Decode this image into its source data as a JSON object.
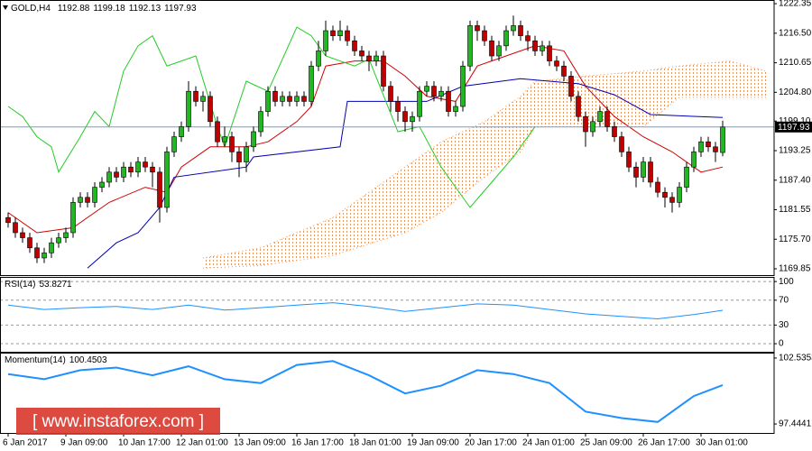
{
  "chart_data": [
    {
      "type": "candlestick",
      "title": "GOLD,H4",
      "xlim": [
        -1.125,
        106.125
      ],
      "xticks": [
        {
          "value": 0,
          "label": "6 Jan 2017"
        },
        {
          "value": 8,
          "label": "9 Jan 09:00"
        },
        {
          "value": 16,
          "label": "10 Jan 17:00"
        },
        {
          "value": 24,
          "label": "12 Jan 01:00"
        },
        {
          "value": 32,
          "label": "13 Jan 09:00"
        },
        {
          "value": 40,
          "label": "16 Jan 17:00"
        },
        {
          "value": 48,
          "label": "18 Jan 01:00"
        },
        {
          "value": 56,
          "label": "19 Jan 09:00"
        },
        {
          "value": 64,
          "label": "20 Jan 17:00"
        },
        {
          "value": 72,
          "label": "24 Jan 01:00"
        },
        {
          "value": 80,
          "label": "25 Jan 09:00"
        },
        {
          "value": 88,
          "label": "26 Jan 17:00"
        },
        {
          "value": 96,
          "label": "30 Jan 01:00"
        }
      ],
      "ylim": [
        1168.6,
        1222.9
      ],
      "yticks": [
        1222.35,
        {
          "value": 1216.5,
          "label": "1216.50"
        },
        1210.65,
        {
          "value": 1204.8,
          "label": "1204.80"
        },
        {
          "value": 1199.1,
          "label": "1199.10"
        },
        1193.25,
        {
          "value": 1187.4,
          "label": "1187.40"
        },
        1181.55,
        {
          "value": 1175.7,
          "label": "1175.70"
        },
        1169.85
      ],
      "grid": false,
      "up_color": "#22b722",
      "down_color": "#c00000",
      "wick_color": "#000000",
      "open": [
        1180,
        1179,
        1177,
        1176,
        1174,
        1172,
        1173,
        1175,
        1176,
        1177,
        1183,
        1184,
        1183,
        1186,
        1187,
        1189,
        1188,
        1190,
        1189,
        1191,
        1190,
        1189,
        1182,
        1193,
        1196,
        1198,
        1205,
        1203,
        1204,
        1199,
        1195,
        1196,
        1193,
        1191,
        1194,
        1197,
        1201,
        1205,
        1203,
        1204,
        1203,
        1204,
        1203,
        1210,
        1213,
        1217,
        1216,
        1217,
        1215,
        1213,
        1212,
        1211,
        1212,
        1206,
        1203,
        1201,
        1199,
        1200,
        1205,
        1206,
        1204,
        1205,
        1201,
        1202,
        1210,
        1218,
        1217,
        1215,
        1212,
        1214,
        1217,
        1218,
        1216,
        1215,
        1213,
        1214,
        1211,
        1210,
        1208,
        1204,
        1200,
        1197,
        1199,
        1201,
        1198,
        1196,
        1193,
        1190,
        1188,
        1191,
        1187,
        1185,
        1184,
        1183,
        1186,
        1190,
        1193,
        1195,
        1194,
        1192.88
      ],
      "high": [
        1181,
        1180,
        1178,
        1177,
        1175,
        1174,
        1176,
        1177,
        1178,
        1184,
        1185,
        1185,
        1187,
        1188,
        1190,
        1190,
        1191,
        1191,
        1192,
        1192,
        1191,
        1190,
        1194,
        1197,
        1199,
        1207,
        1206,
        1205,
        1205,
        1200,
        1198,
        1197,
        1194,
        1195,
        1198,
        1202,
        1206,
        1206,
        1205,
        1205,
        1205,
        1205,
        1211,
        1215,
        1219,
        1218,
        1219,
        1218,
        1216,
        1214,
        1213,
        1213,
        1213,
        1207,
        1204,
        1202,
        1201,
        1206,
        1207,
        1207,
        1206,
        1206,
        1203,
        1211,
        1219,
        1219,
        1218,
        1216,
        1215,
        1218,
        1220,
        1219,
        1217,
        1216,
        1215,
        1215,
        1212,
        1211,
        1209,
        1205,
        1201,
        1200,
        1202,
        1202,
        1199,
        1197,
        1194,
        1191,
        1192,
        1192,
        1188,
        1186,
        1185,
        1187,
        1191,
        1194,
        1196,
        1196,
        1195,
        1199.18
      ],
      "low": [
        1178,
        1176,
        1175,
        1173,
        1171,
        1171,
        1172,
        1174,
        1175,
        1176,
        1182,
        1182,
        1182,
        1185,
        1186,
        1187,
        1187,
        1188,
        1188,
        1189,
        1186,
        1179,
        1181,
        1192,
        1195,
        1197,
        1202,
        1201,
        1198,
        1194,
        1194,
        1191,
        1188,
        1189,
        1193,
        1196,
        1200,
        1202,
        1202,
        1202,
        1202,
        1202,
        1202,
        1209,
        1212,
        1215,
        1215,
        1214,
        1212,
        1211,
        1209,
        1210,
        1205,
        1201,
        1199,
        1197,
        1197,
        1199,
        1204,
        1203,
        1203,
        1200,
        1200,
        1201,
        1209,
        1215,
        1214,
        1211,
        1211,
        1213,
        1216,
        1215,
        1213,
        1212,
        1212,
        1210,
        1209,
        1207,
        1203,
        1199,
        1194,
        1196,
        1198,
        1197,
        1195,
        1192,
        1189,
        1186,
        1187,
        1186,
        1184,
        1182,
        1181,
        1182,
        1185,
        1189,
        1192,
        1193,
        1191,
        1192.13
      ],
      "close": [
        1179,
        1177,
        1176,
        1174,
        1172,
        1173,
        1175,
        1176,
        1177,
        1183,
        1184,
        1183,
        1186,
        1187,
        1189,
        1188,
        1190,
        1189,
        1191,
        1190,
        1189,
        1182,
        1193,
        1196,
        1198,
        1205,
        1203,
        1204,
        1199,
        1195,
        1196,
        1193,
        1191,
        1194,
        1197,
        1201,
        1205,
        1203,
        1204,
        1203,
        1204,
        1203,
        1210,
        1213,
        1217,
        1216,
        1217,
        1215,
        1213,
        1212,
        1211,
        1212,
        1206,
        1203,
        1201,
        1199,
        1200,
        1205,
        1206,
        1204,
        1205,
        1201,
        1202,
        1210,
        1218,
        1217,
        1215,
        1212,
        1214,
        1217,
        1218,
        1216,
        1215,
        1213,
        1214,
        1211,
        1210,
        1208,
        1204,
        1200,
        1197,
        1199,
        1201,
        1198,
        1196,
        1193,
        1190,
        1188,
        1191,
        1187,
        1185,
        1184,
        1183,
        1186,
        1190,
        1193,
        1195,
        1194,
        1193,
        1197.93
      ],
      "cloud": {
        "color": "#e8955a",
        "x": [
          27,
          35,
          45,
          55,
          60,
          66,
          71,
          73,
          80,
          88,
          93,
          100,
          105
        ],
        "span_a": [
          1172,
          1174,
          1180,
          1190,
          1195,
          1199,
          1204,
          1207,
          1208,
          1209,
          1210,
          1211,
          1209
        ],
        "span_b": [
          1170,
          1170.5,
          1172.5,
          1177,
          1181,
          1188,
          1193,
          1198,
          1198,
          1198,
          1203.8,
          1203.8,
          1203.8
        ]
      },
      "overlays": [
        {
          "color": "#d00000",
          "x": [
            0,
            4,
            9,
            14,
            19,
            22,
            24,
            28,
            33,
            36,
            40,
            42,
            44,
            48,
            52,
            55,
            58,
            62,
            65,
            69,
            73,
            77,
            80,
            84,
            88,
            92,
            96,
            99
          ],
          "values": [
            1181,
            1177,
            1178,
            1183,
            1186,
            1185,
            1190,
            1194,
            1194,
            1195,
            1199,
            1202,
            1210,
            1211,
            1211,
            1208,
            1204,
            1203,
            1210,
            1212,
            1214,
            1213,
            1206,
            1200,
            1196,
            1193,
            1189,
            1190
          ]
        },
        {
          "color": "#0000b0",
          "x": [
            11,
            15,
            18,
            21,
            23,
            33,
            34,
            46,
            47,
            58,
            63,
            71,
            79,
            84,
            89,
            99
          ],
          "values": [
            1170,
            1175,
            1177,
            1182,
            1188,
            1190,
            1192,
            1194,
            1203,
            1203,
            1206,
            1207.5,
            1206.5,
            1204.3,
            1200.4,
            1199.8
          ]
        },
        {
          "color": "#22cc22",
          "x": [
            0,
            2,
            4,
            6,
            7,
            10,
            12,
            14,
            16,
            18,
            20,
            22,
            26,
            29,
            30,
            33,
            36,
            40,
            42,
            44,
            48,
            50,
            54,
            57,
            60,
            64,
            67,
            70,
            73
          ],
          "values": [
            1202,
            1200,
            1196,
            1194,
            1189,
            1196,
            1201,
            1198,
            1209,
            1214,
            1216,
            1210,
            1212,
            1198,
            1194,
            1207,
            1205,
            1217.7,
            1216,
            1212,
            1210,
            1211.4,
            1197,
            1198,
            1190,
            1182,
            1187,
            1192,
            1198
          ]
        }
      ]
    },
    {
      "type": "line",
      "title": "RSI(14)",
      "color": "#1e90ff",
      "ylim": [
        -13,
        106
      ],
      "yticks": [
        100,
        70,
        30,
        0
      ],
      "grid": true,
      "x": [
        0,
        5,
        10,
        15,
        20,
        25,
        30,
        35,
        40,
        45,
        50,
        55,
        60,
        65,
        70,
        75,
        80,
        85,
        90,
        95,
        99
      ],
      "values": [
        62,
        55,
        58,
        60,
        55,
        62,
        54,
        58,
        62,
        66,
        60,
        52,
        58,
        64,
        62,
        55,
        48,
        44,
        40,
        47,
        53.8271
      ]
    },
    {
      "type": "line",
      "title": "Momentum(14)",
      "color": "#1e90ff",
      "ylim": [
        96.75,
        102.88
      ],
      "yticks": [
        102.5353,
        97.4441
      ],
      "grid": false,
      "x": [
        0,
        5,
        10,
        15,
        20,
        25,
        30,
        35,
        40,
        45,
        50,
        55,
        60,
        65,
        70,
        75,
        80,
        85,
        90,
        95,
        99
      ],
      "values": [
        101.3,
        100.9,
        101.6,
        101.8,
        101.2,
        101.9,
        100.9,
        100.6,
        102.0,
        102.3,
        101.2,
        99.8,
        100.4,
        101.6,
        101.3,
        100.6,
        98.4,
        97.9,
        97.6,
        99.6,
        100.4503
      ]
    }
  ],
  "watermark": "[ www.instaforex.com ]"
}
